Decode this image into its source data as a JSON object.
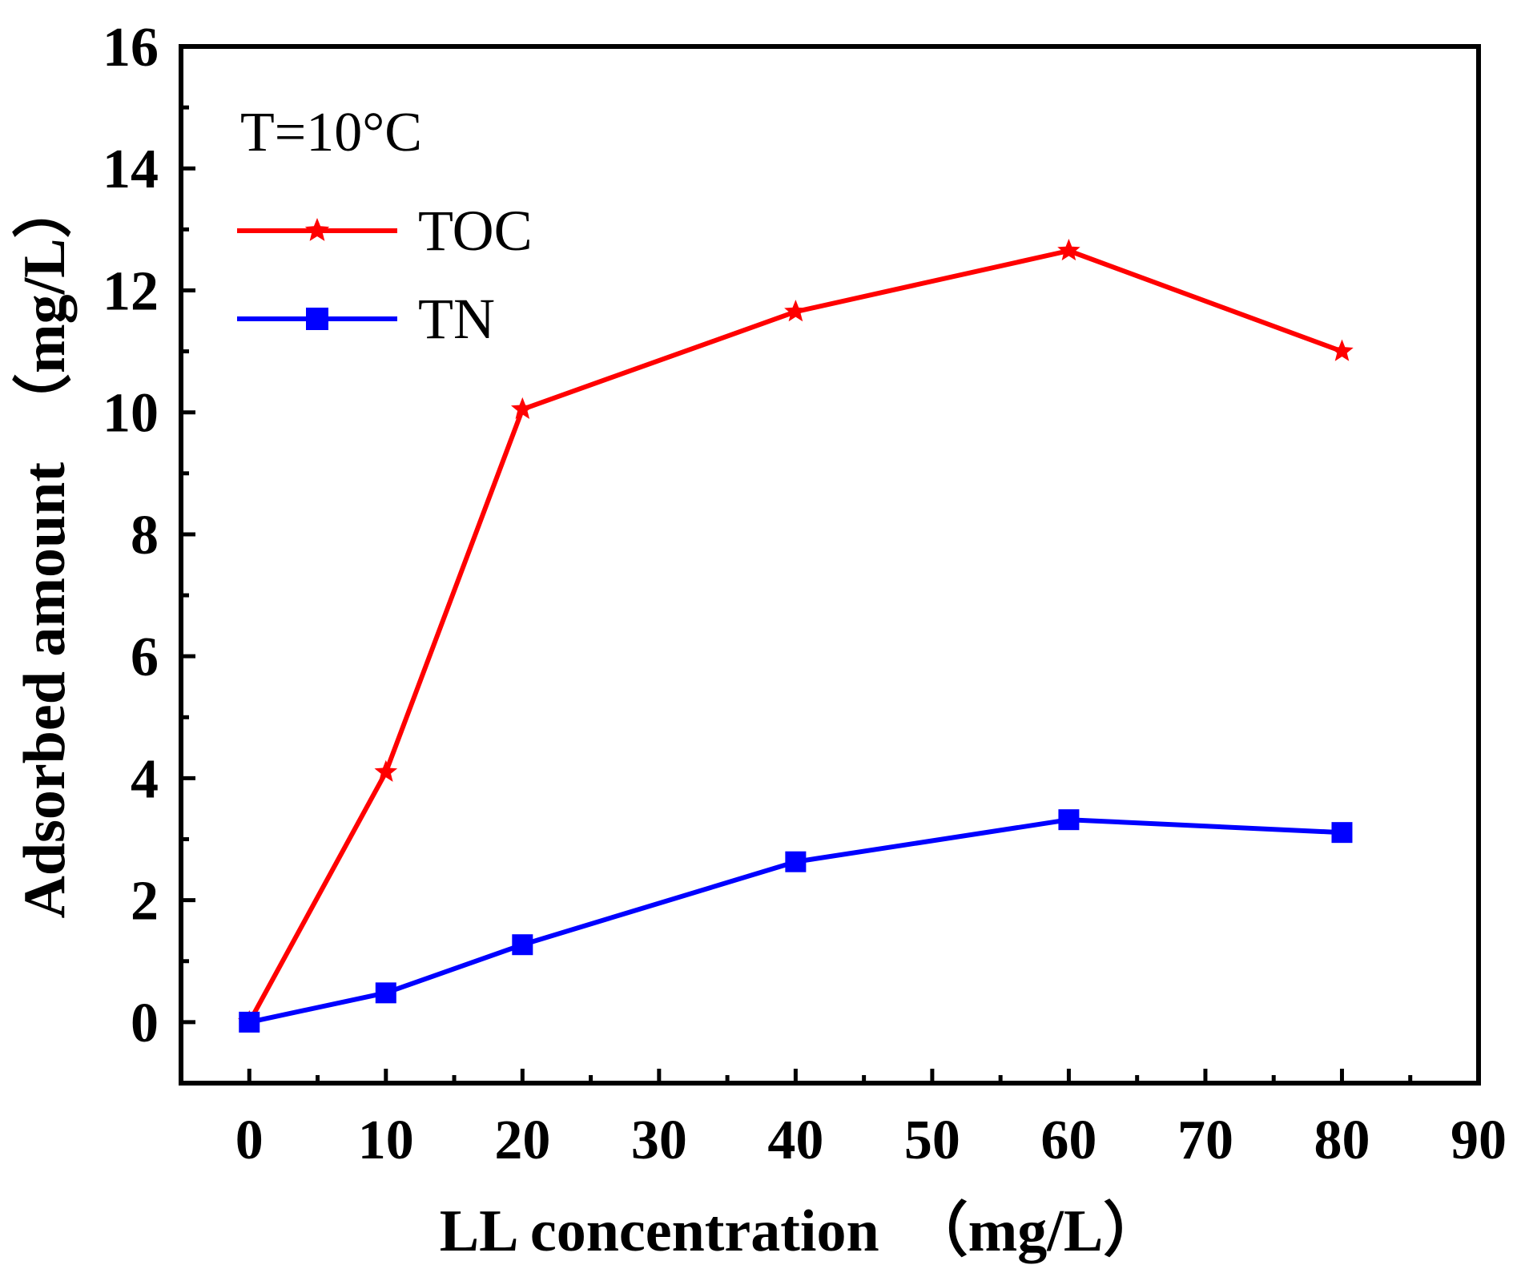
{
  "chart_data": {
    "type": "line",
    "title": "",
    "annotation": "T=10°C",
    "xlabel": "LL concentration　（mg/L）",
    "ylabel": "Adsorbed amount　（mg/L）",
    "xlim": [
      -5,
      90
    ],
    "ylim": [
      -1,
      16
    ],
    "xticks": [
      0,
      10,
      20,
      30,
      40,
      50,
      60,
      70,
      80,
      90
    ],
    "yticks": [
      0,
      2,
      4,
      6,
      8,
      10,
      12,
      14,
      16
    ],
    "x": [
      0,
      10,
      20,
      40,
      60,
      80
    ],
    "series": [
      {
        "name": "TOC",
        "color": "#ff0000",
        "marker": "star",
        "values": [
          0,
          4.1,
          10.05,
          11.65,
          12.65,
          11.0
        ]
      },
      {
        "name": "TN",
        "color": "#0000ff",
        "marker": "square",
        "values": [
          0,
          0.48,
          1.27,
          2.63,
          3.32,
          3.11
        ]
      }
    ],
    "legend_position": "top-left",
    "grid": false
  }
}
